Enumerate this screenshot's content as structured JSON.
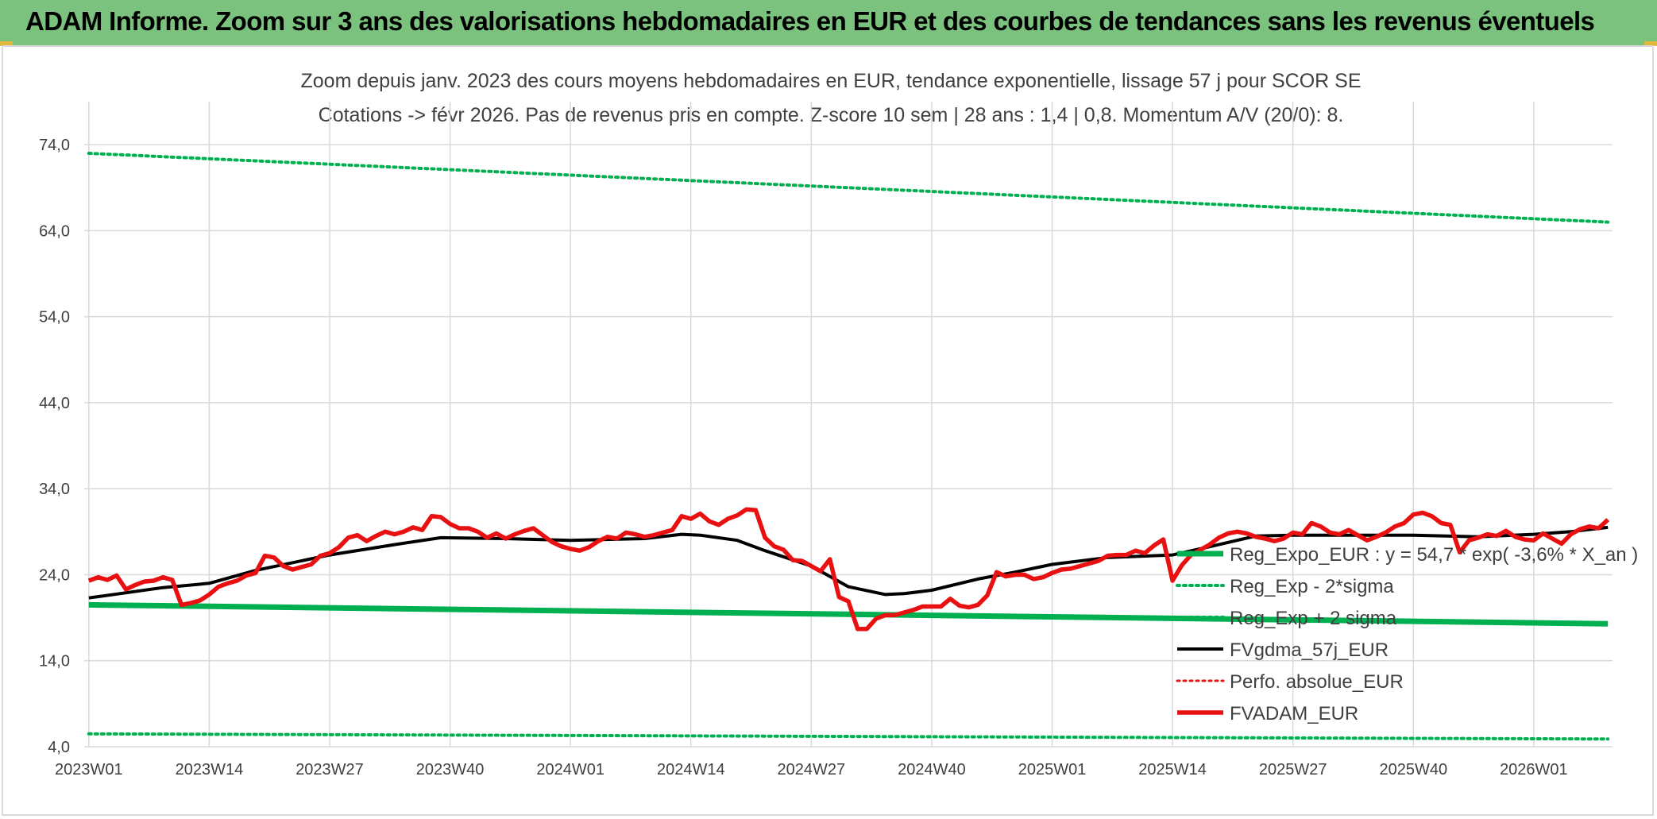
{
  "banner": {
    "text": "ADAM Informe. Zoom sur 3 ans des valorisations hebdomadaires en EUR et des courbes de tendances sans les revenus éventuels"
  },
  "colors": {
    "banner": "#7ac27d",
    "trend": "#00b050",
    "fvgdma": "#000000",
    "fvadam": "#e81010",
    "perfo": "#e81010",
    "grid": "#d9d9d9"
  },
  "chart_data": {
    "type": "line",
    "title": "Zoom depuis janv. 2023 des cours moyens hebdomadaires en EUR, tendance exponentielle, lissage 57 j pour SCOR SE",
    "subtitle": "Cotations -> févr 2026. Pas de revenus pris en compte. Z-score 10 sem | 28 ans : 1,4 | 0,8. Momentum A/V (20/0): 8.",
    "xlabel": "",
    "ylabel": "",
    "ylim": [
      4,
      79
    ],
    "y_ticks": [
      "4,0",
      "14,0",
      "24,0",
      "34,0",
      "44,0",
      "54,0",
      "64,0",
      "74,0"
    ],
    "y_tick_values": [
      4,
      14,
      24,
      34,
      44,
      54,
      64,
      74
    ],
    "x_ticks": [
      "2023W01",
      "2023W14",
      "2023W27",
      "2023W40",
      "2024W01",
      "2024W14",
      "2024W27",
      "2024W40",
      "2025W01",
      "2025W14",
      "2025W27",
      "2025W40",
      "2026W01"
    ],
    "x_tick_index": [
      0,
      13,
      26,
      39,
      52,
      65,
      78,
      91,
      104,
      117,
      130,
      143,
      156
    ],
    "n_weeks": 165,
    "grid": true,
    "legend_position": "bottom-right",
    "legend": [
      {
        "label": "Reg_Expo_EUR : y = 54,7 * exp( -3,6% * X_an )",
        "style": "thick-green"
      },
      {
        "label": "Reg_Exp - 2*sigma",
        "style": "dotted-green"
      },
      {
        "label": "Reg_Exp + 2 sigma",
        "style": "dotted-green"
      },
      {
        "label": "FVgdma_57j_EUR",
        "style": "black"
      },
      {
        "label": "Perfo. absolue_EUR",
        "style": "dotted-red"
      },
      {
        "label": "FVADAM_EUR",
        "style": "thick-red"
      }
    ],
    "series": [
      {
        "name": "Reg_Expo_EUR : y = 54,7 * exp( -3,6% * X_an )",
        "x": [
          0,
          164
        ],
        "values": [
          20.5,
          18.3
        ]
      },
      {
        "name": "Reg_Exp - 2*sigma",
        "x": [
          0,
          164
        ],
        "values": [
          5.5,
          4.9
        ]
      },
      {
        "name": "Reg_Exp + 2 sigma",
        "x": [
          0,
          164
        ],
        "values": [
          73.0,
          65.0
        ]
      },
      {
        "name": "FVgdma_57j_EUR",
        "x": [
          0,
          8,
          13,
          18,
          26,
          33,
          38,
          45,
          52,
          60,
          64,
          66,
          70,
          73,
          78,
          82,
          86,
          88,
          91,
          96,
          100,
          104,
          110,
          117,
          122,
          126,
          130,
          136,
          143,
          150,
          156,
          160,
          164
        ],
        "values": [
          21.3,
          22.5,
          23.0,
          24.5,
          26.3,
          27.5,
          28.3,
          28.2,
          28.0,
          28.2,
          28.7,
          28.6,
          28.0,
          26.8,
          25.0,
          22.6,
          21.7,
          21.8,
          22.2,
          23.5,
          24.3,
          25.2,
          26.0,
          26.3,
          27.5,
          28.5,
          28.6,
          28.6,
          28.6,
          28.4,
          28.7,
          29.0,
          29.5
        ]
      },
      {
        "name": "FVADAM_EUR",
        "x": [
          0,
          1,
          2,
          3,
          4,
          5,
          6,
          7,
          8,
          9,
          10,
          11,
          12,
          13,
          14,
          15,
          16,
          17,
          18,
          19,
          20,
          21,
          22,
          23,
          24,
          25,
          26,
          27,
          28,
          29,
          30,
          31,
          32,
          33,
          34,
          35,
          36,
          37,
          38,
          39,
          40,
          41,
          42,
          43,
          44,
          45,
          46,
          47,
          48,
          49,
          50,
          51,
          52,
          53,
          54,
          55,
          56,
          57,
          58,
          59,
          60,
          61,
          62,
          63,
          64,
          65,
          66,
          67,
          68,
          69,
          70,
          71,
          72,
          73,
          74,
          75,
          76,
          77,
          78,
          79,
          80,
          81,
          82,
          83,
          84,
          85,
          86,
          87,
          88,
          89,
          90,
          91,
          92,
          93,
          94,
          95,
          96,
          97,
          98,
          99,
          100,
          101,
          102,
          103,
          104,
          105,
          106,
          107,
          108,
          109,
          110,
          111,
          112,
          113,
          114,
          115,
          116,
          117,
          118,
          119,
          120,
          121,
          122,
          123,
          124,
          125,
          126,
          127,
          128,
          129,
          130,
          131,
          132,
          133,
          134,
          135,
          136,
          137,
          138,
          139,
          140,
          141,
          142,
          143,
          144,
          145,
          146,
          147,
          148,
          149,
          150,
          151,
          152,
          153,
          154,
          155,
          156,
          157,
          158,
          159,
          160,
          161,
          162,
          163,
          164
        ],
        "values": [
          23.3,
          23.7,
          23.4,
          23.9,
          22.3,
          22.8,
          23.2,
          23.3,
          23.7,
          23.4,
          20.5,
          20.7,
          21.0,
          21.7,
          22.6,
          23.0,
          23.3,
          23.9,
          24.2,
          26.2,
          26.0,
          25.0,
          24.6,
          24.9,
          25.2,
          26.2,
          26.5,
          27.2,
          28.3,
          28.6,
          27.9,
          28.5,
          29.0,
          28.7,
          29.0,
          29.5,
          29.2,
          30.8,
          30.7,
          29.9,
          29.4,
          29.4,
          29.0,
          28.3,
          28.8,
          28.2,
          28.7,
          29.1,
          29.4,
          28.6,
          27.8,
          27.3,
          27.0,
          26.8,
          27.2,
          27.9,
          28.4,
          28.2,
          28.9,
          28.7,
          28.4,
          28.6,
          28.9,
          29.2,
          30.8,
          30.5,
          31.1,
          30.2,
          29.8,
          30.5,
          30.9,
          31.6,
          31.5,
          28.3,
          27.3,
          26.9,
          25.7,
          25.6,
          25.0,
          24.4,
          25.8,
          21.4,
          20.9,
          17.7,
          17.7,
          18.9,
          19.3,
          19.3,
          19.6,
          19.9,
          20.3,
          20.3,
          20.3,
          21.2,
          20.4,
          20.2,
          20.5,
          21.6,
          24.3,
          23.8,
          24.0,
          24.0,
          23.5,
          23.7,
          24.2,
          24.6,
          24.7,
          25.0,
          25.3,
          25.6,
          26.2,
          26.3,
          26.3,
          26.8,
          26.5,
          27.4,
          28.1,
          23.3,
          25.1,
          26.3,
          26.9,
          27.5,
          28.3,
          28.8,
          29.0,
          28.8,
          28.4,
          28.2,
          27.9,
          28.2,
          28.9,
          28.7,
          30.0,
          29.6,
          28.9,
          28.7,
          29.2,
          28.6,
          28.0,
          28.4,
          28.9,
          29.6,
          30.0,
          31.0,
          31.2,
          30.8,
          30.0,
          29.8,
          26.6,
          28.0,
          28.3,
          28.7,
          28.5,
          29.1,
          28.4,
          28.1,
          28.0,
          28.8,
          28.2,
          27.6,
          28.7,
          29.3,
          29.6,
          29.4,
          30.4
        ]
      },
      {
        "name": "Perfo. absolue_EUR",
        "x": [],
        "values": []
      }
    ]
  }
}
